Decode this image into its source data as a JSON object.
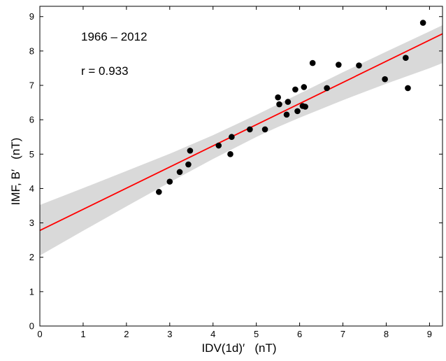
{
  "chart_data": {
    "type": "scatter",
    "xlabel": "IDV(1d)′   (nT)",
    "ylabel": "IMF, B′   (nT)",
    "xlim": [
      0,
      9.3
    ],
    "ylim": [
      0,
      9.3
    ],
    "xticks": [
      0,
      1,
      2,
      3,
      4,
      5,
      6,
      7,
      8,
      9
    ],
    "yticks": [
      0,
      1,
      2,
      3,
      4,
      5,
      6,
      7,
      8,
      9
    ],
    "grid": false,
    "annotations": [
      {
        "text": "1966 – 2012",
        "color": "#000000"
      },
      {
        "text": "r = 0.933",
        "color": "#ff0000"
      }
    ],
    "series": [
      {
        "kind": "points",
        "color": "#000000",
        "x": [
          2.75,
          3.0,
          3.23,
          3.43,
          3.47,
          4.13,
          4.4,
          4.43,
          4.85,
          5.2,
          5.5,
          5.53,
          5.7,
          5.73,
          5.9,
          5.95,
          6.07,
          6.1,
          6.13,
          6.3,
          6.63,
          6.9,
          7.37,
          7.97,
          8.45,
          8.5,
          8.85
        ],
        "y": [
          3.9,
          4.2,
          4.48,
          4.7,
          5.1,
          5.25,
          5.0,
          5.5,
          5.72,
          5.72,
          6.65,
          6.45,
          6.15,
          6.52,
          6.88,
          6.25,
          6.4,
          6.95,
          6.38,
          7.65,
          6.92,
          7.6,
          7.58,
          7.18,
          7.8,
          6.92,
          8.82
        ]
      },
      {
        "kind": "fit-line",
        "color": "#ff0000",
        "x": [
          0,
          9.3
        ],
        "y": [
          2.78,
          8.5
        ]
      },
      {
        "kind": "confidence-band",
        "color": "#d9d9d9",
        "x": [
          0,
          1,
          2,
          3,
          4,
          5,
          5.5,
          6,
          7,
          8,
          9,
          9.3
        ],
        "lower": [
          2.05,
          2.77,
          3.48,
          4.18,
          4.86,
          5.5,
          5.79,
          6.06,
          6.57,
          7.05,
          7.5,
          7.65
        ],
        "upper": [
          3.52,
          4.01,
          4.51,
          5.01,
          5.55,
          6.14,
          6.45,
          6.76,
          7.38,
          7.98,
          8.57,
          8.75
        ]
      }
    ]
  }
}
